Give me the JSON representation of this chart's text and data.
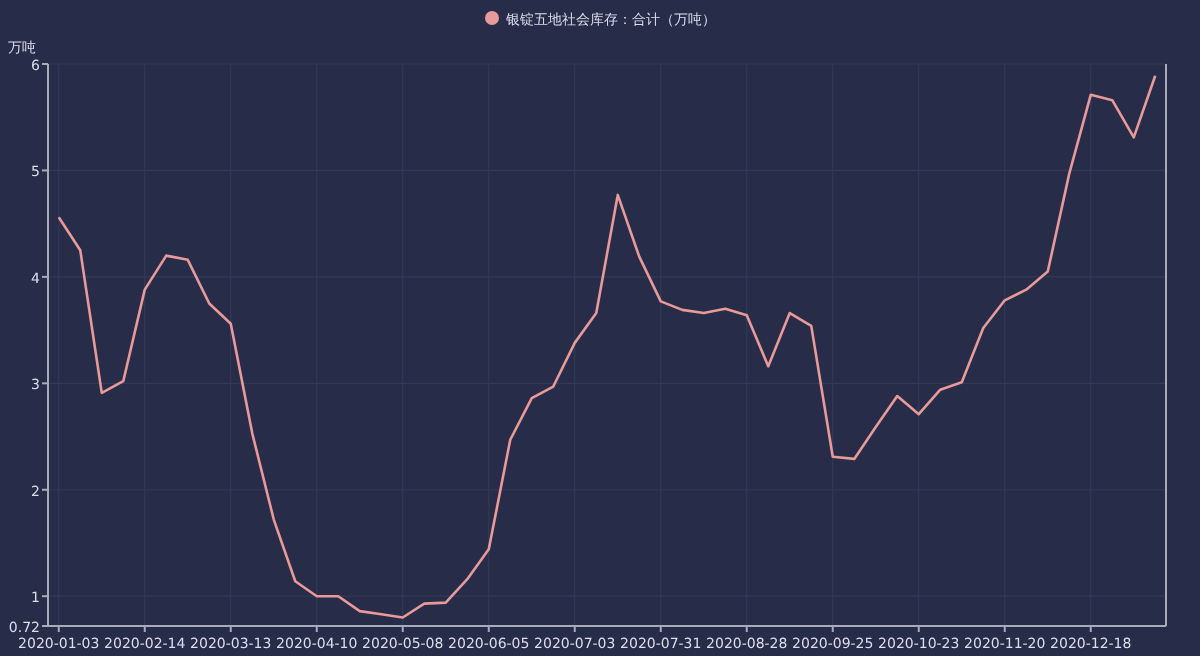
{
  "chart_data": {
    "type": "line",
    "ylabel": "万吨",
    "legend": "top",
    "categories": [
      "2020-01-03",
      null,
      null,
      null,
      "2020-02-14",
      null,
      null,
      null,
      "2020-03-13",
      null,
      null,
      null,
      "2020-04-10",
      null,
      null,
      null,
      "2020-05-08",
      null,
      null,
      null,
      "2020-06-05",
      null,
      null,
      null,
      "2020-07-03",
      null,
      null,
      null,
      "2020-07-31",
      null,
      null,
      null,
      "2020-08-28",
      null,
      null,
      null,
      "2020-09-25",
      null,
      null,
      null,
      "2020-10-23",
      null,
      null,
      null,
      "2020-11-20",
      null,
      null,
      null,
      "2020-12-18",
      null,
      null,
      null
    ],
    "series": [
      {
        "name": "银锭五地社会库存：合计（万吨）",
        "color": "#e8999a",
        "values": [
          4.56,
          4.25,
          2.91,
          3.02,
          3.88,
          4.2,
          4.16,
          3.75,
          3.56,
          2.53,
          1.72,
          1.14,
          1.0,
          1.0,
          0.86,
          0.83,
          0.8,
          0.93,
          0.94,
          1.16,
          1.44,
          2.47,
          2.86,
          2.97,
          3.38,
          3.66,
          4.77,
          4.19,
          3.77,
          3.69,
          3.66,
          3.7,
          3.64,
          3.16,
          3.66,
          3.54,
          2.31,
          2.29,
          2.59,
          2.88,
          2.71,
          2.94,
          3.01,
          3.52,
          3.78,
          3.88,
          4.05,
          4.97,
          5.71,
          5.66,
          5.31,
          5.89
        ]
      }
    ],
    "ylim": [
      0.72,
      6
    ],
    "yticks": [
      0.72,
      1,
      2,
      3,
      4,
      5,
      6
    ],
    "grid": true,
    "marker": "none",
    "line_style": "solid"
  }
}
